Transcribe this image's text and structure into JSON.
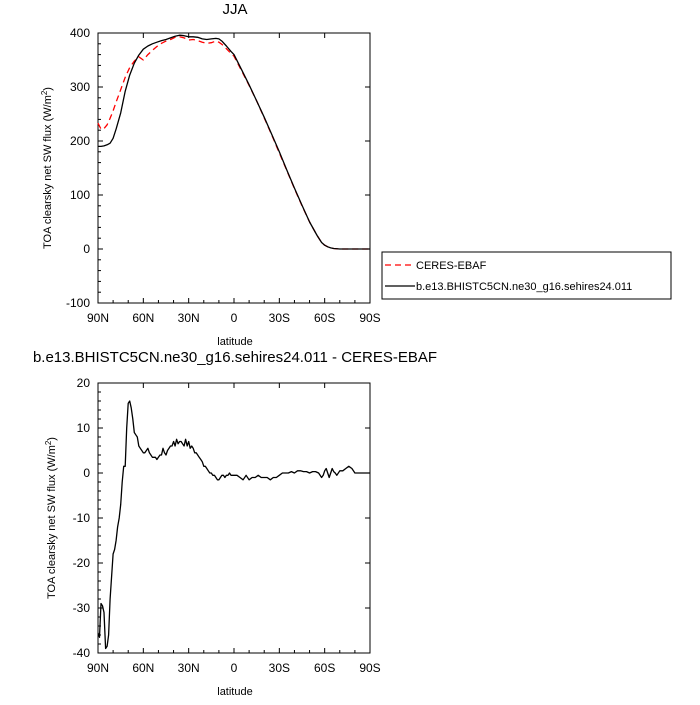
{
  "chart_data": [
    {
      "type": "line",
      "title": "JJA",
      "xlabel": "latitude",
      "ylabel_main": "TOA clearsky net SW flux (W/m",
      "ylabel_sup": "2",
      "ylabel_close": ")",
      "xlim": [
        90,
        -90
      ],
      "ylim": [
        -100,
        400
      ],
      "xticks": [
        90,
        60,
        30,
        0,
        -30,
        -60,
        -90
      ],
      "xtick_labels": [
        "90N",
        "60N",
        "30N",
        "0",
        "30S",
        "60S",
        "90S"
      ],
      "yticks": [
        -100,
        0,
        100,
        200,
        300,
        400
      ],
      "ytick_labels": [
        "-100",
        "0",
        "100",
        "200",
        "300",
        "400"
      ],
      "legend_position": "right",
      "series": [
        {
          "name": "CERES-EBAF",
          "color": "#ff0000",
          "dash": "dashed",
          "x": [
            90,
            88,
            86,
            84,
            82,
            80,
            78,
            75,
            72,
            69,
            66,
            63,
            60,
            57,
            54,
            51,
            48,
            45,
            42,
            39,
            36,
            33,
            30,
            27,
            24,
            21,
            18,
            15,
            12,
            10,
            8,
            5,
            2,
            0,
            -5,
            -10,
            -15,
            -20,
            -25,
            -30,
            -35,
            -40,
            -45,
            -50,
            -55,
            -58,
            -60,
            -62,
            -64,
            -66,
            -70,
            -75,
            -80,
            -85,
            -90
          ],
          "y": [
            233,
            222,
            223,
            230,
            242,
            256,
            272,
            295,
            318,
            336,
            348,
            356,
            350,
            360,
            368,
            375,
            381,
            385,
            388,
            392,
            393,
            391,
            387,
            388,
            386,
            383,
            381,
            382,
            385,
            383,
            379,
            371,
            362,
            357,
            330,
            303,
            274,
            243,
            211,
            178,
            145,
            112,
            80,
            50,
            25,
            12,
            7,
            4,
            2,
            1,
            0,
            0,
            0,
            0,
            0
          ]
        },
        {
          "name": "b.e13.BHISTC5CN.ne30_g16.sehires24.011",
          "color": "#000000",
          "dash": "solid",
          "x": [
            90,
            88,
            86,
            84,
            82,
            80,
            78,
            75,
            72,
            69,
            66,
            63,
            60,
            57,
            54,
            51,
            48,
            45,
            42,
            39,
            36,
            33,
            30,
            27,
            24,
            21,
            18,
            15,
            12,
            10,
            8,
            5,
            2,
            0,
            -5,
            -10,
            -15,
            -20,
            -25,
            -30,
            -35,
            -40,
            -45,
            -50,
            -55,
            -58,
            -60,
            -62,
            -64,
            -66,
            -70,
            -75,
            -80,
            -85,
            -90
          ],
          "y": [
            190,
            190,
            191,
            193,
            196,
            205,
            222,
            252,
            292,
            322,
            344,
            359,
            370,
            376,
            380,
            383,
            386,
            388,
            391,
            394,
            396,
            395,
            393,
            393,
            392,
            389,
            388,
            389,
            390,
            389,
            385,
            376,
            366,
            360,
            332,
            304,
            274,
            244,
            212,
            180,
            146,
            113,
            81,
            50,
            25,
            12,
            7,
            4,
            2,
            1,
            0,
            0,
            0,
            0,
            0
          ]
        }
      ]
    },
    {
      "type": "line",
      "title": "b.e13.BHISTC5CN.ne30_g16.sehires24.011 - CERES-EBAF",
      "xlabel": "latitude",
      "ylabel_main": "TOA clearsky net SW flux (W/m",
      "ylabel_sup": "2",
      "ylabel_close": ")",
      "xlim": [
        90,
        -90
      ],
      "ylim": [
        -40,
        20
      ],
      "xticks": [
        90,
        60,
        30,
        0,
        -30,
        -60,
        -90
      ],
      "xtick_labels": [
        "90N",
        "60N",
        "30N",
        "0",
        "30S",
        "60S",
        "90S"
      ],
      "yticks": [
        -40,
        -30,
        -20,
        -10,
        0,
        10,
        20
      ],
      "ytick_labels": [
        "-40",
        "-30",
        "-20",
        "-10",
        "0",
        "10",
        "20"
      ],
      "series": [
        {
          "color": "#000000",
          "dash": "solid",
          "x": [
            90,
            89,
            88,
            87,
            86,
            85,
            84,
            83,
            82,
            81,
            80,
            79,
            78,
            77,
            76,
            75,
            74,
            73,
            72,
            71,
            70,
            69,
            68,
            67,
            66,
            65,
            64,
            63,
            62,
            61,
            60,
            59,
            58,
            57,
            56,
            55,
            54,
            53,
            52,
            51,
            50,
            49,
            48,
            47,
            46,
            45,
            44,
            43,
            42,
            41,
            40,
            39,
            38,
            37,
            36,
            35,
            34,
            33,
            32,
            31,
            30,
            29,
            28,
            27,
            26,
            25,
            24,
            23,
            22,
            21,
            20,
            19,
            18,
            17,
            16,
            15,
            14,
            13,
            12,
            11,
            10,
            9,
            8,
            7,
            6,
            5,
            4,
            3,
            2,
            1,
            0,
            -2,
            -4,
            -6,
            -8,
            -10,
            -12,
            -14,
            -16,
            -18,
            -20,
            -22,
            -24,
            -26,
            -28,
            -30,
            -32,
            -34,
            -36,
            -38,
            -40,
            -42,
            -44,
            -46,
            -48,
            -50,
            -52,
            -54,
            -56,
            -58,
            -59,
            -60,
            -61,
            -62,
            -63,
            -64,
            -65,
            -66,
            -67,
            -68,
            -70,
            -72,
            -74,
            -76,
            -78,
            -80,
            -82,
            -84,
            -86,
            -88,
            -90
          ],
          "y": [
            -35.5,
            -36.5,
            -29,
            -29.5,
            -31,
            -39,
            -38.5,
            -36,
            -28,
            -23,
            -18,
            -17,
            -15,
            -12,
            -10,
            -7,
            -2,
            1.5,
            1.5,
            10,
            15.5,
            16,
            14.5,
            12,
            9,
            8.5,
            8,
            6,
            5.5,
            5,
            4.5,
            4.5,
            5,
            5.5,
            4.5,
            4,
            3.5,
            3.5,
            3.5,
            3,
            3.5,
            4,
            4,
            5.5,
            4.5,
            4,
            5,
            5.5,
            6,
            6,
            7,
            6,
            7.5,
            6.5,
            7,
            7,
            6.5,
            6,
            7.5,
            6,
            7,
            5.5,
            6,
            5.5,
            4.5,
            4.5,
            4,
            3.5,
            3,
            2.5,
            1.5,
            1.5,
            1,
            0.5,
            0,
            0,
            -0.5,
            -0.5,
            -1,
            -1.5,
            -1.5,
            -1,
            -0.5,
            -0.5,
            -1,
            -0.5,
            -0.5,
            0,
            -0.5,
            -0.5,
            -0.5,
            -0.5,
            -1,
            -1.5,
            -0.5,
            -1.5,
            -1,
            -1,
            -0.5,
            -1,
            -1,
            -1,
            -1.5,
            -1,
            -1,
            -0.5,
            0,
            0,
            0,
            0.3,
            0,
            0.5,
            0.5,
            0.3,
            0.3,
            0,
            0.3,
            0.3,
            0,
            -1,
            -0.5,
            0.5,
            1,
            0,
            -1,
            0,
            1,
            0.3,
            0,
            -0.5,
            0.5,
            0.5,
            1,
            1.5,
            1,
            0,
            0,
            0,
            0,
            0,
            0
          ]
        }
      ]
    }
  ]
}
